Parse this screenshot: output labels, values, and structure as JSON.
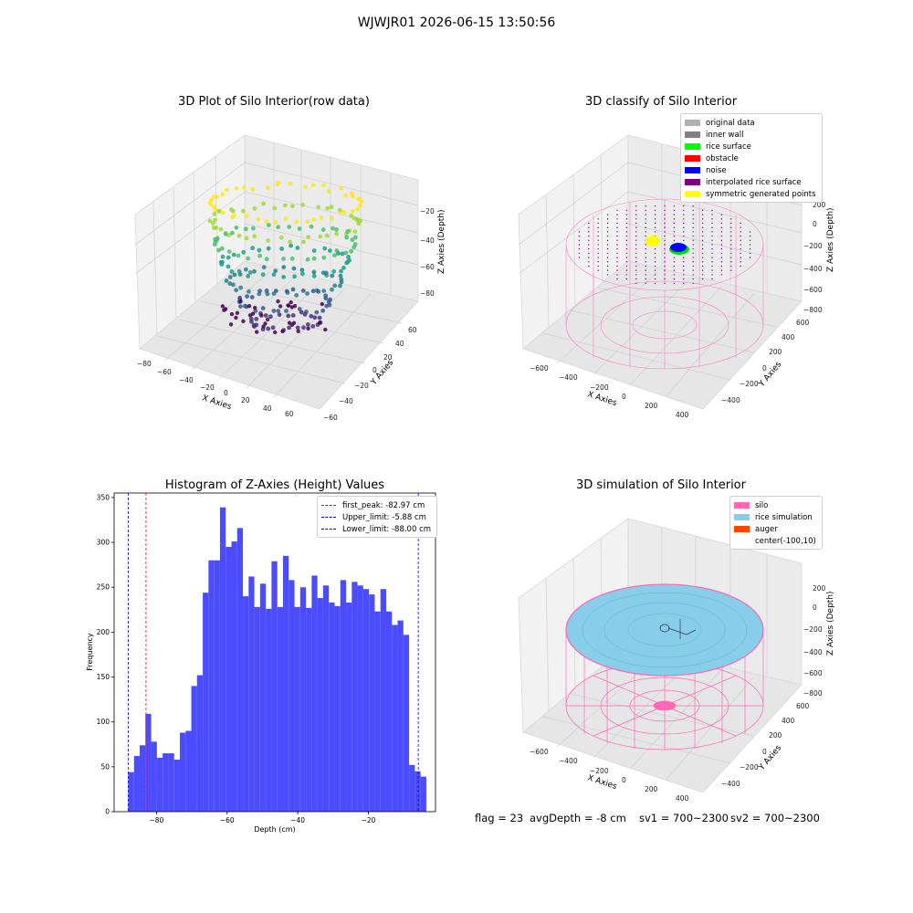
{
  "suptitle": "WJWJR01 2026-06-15 13:50:56",
  "status": {
    "flag": "flag = 23",
    "avg_depth": "avgDepth = -8 cm",
    "sv1": "sv1 = 700~2300",
    "sv2": "sv2 = 700~2300"
  },
  "colors": {
    "histogram_bar": "#4c4cff",
    "first_peak": "#ff0000",
    "limits": "#0000cc",
    "silo": "#ff69b4",
    "rice": "#87ceeb",
    "auger": "#ff4500"
  },
  "chart_data": [
    {
      "type": "scatter",
      "title": "3D Plot of Silo Interior(row data)",
      "xlabel": "X Axies",
      "ylabel": "Y Axies",
      "zlabel": "Z Axies (Depth)",
      "x_ticks": [
        "−80",
        "−60",
        "−40",
        "−20",
        "0",
        "20",
        "40",
        "60"
      ],
      "y_ticks": [
        "−60",
        "−40",
        "−20",
        "0",
        "20",
        "40",
        "60"
      ],
      "z_ticks": [
        "−80",
        "−60",
        "−40",
        "−20"
      ],
      "colormap": "viridis"
    },
    {
      "type": "scatter",
      "title": "3D classify of Silo Interior",
      "xlabel": "X Axies",
      "ylabel": "Y Axies",
      "zlabel": "Z Axies (Depth)",
      "x_ticks": [
        "−600",
        "−400",
        "−200",
        "0",
        "200",
        "400"
      ],
      "y_ticks": [
        "−400",
        "−200",
        "0",
        "200",
        "400",
        "600"
      ],
      "z_ticks": [
        "−800",
        "−600",
        "−400",
        "−200",
        "0",
        "200"
      ],
      "legend_position": "top-right",
      "legend": [
        {
          "label": "original data",
          "color": "#b0b0b0"
        },
        {
          "label": "inner wall",
          "color": "#808080"
        },
        {
          "label": "rice surface",
          "color": "#00ff00"
        },
        {
          "label": "obstacle",
          "color": "#ff0000"
        },
        {
          "label": "noise",
          "color": "#0000ff"
        },
        {
          "label": "interpolated rice surface",
          "color": "#800080"
        },
        {
          "label": "symmetric generated points",
          "color": "#ffff00"
        }
      ]
    },
    {
      "type": "bar",
      "title": "Histogram of Z-Axies (Height) Values",
      "xlabel": "Depth (cm)",
      "ylabel": "Frequency",
      "xlim": [
        -92,
        -1
      ],
      "ylim": [
        0,
        355
      ],
      "x_ticks": [
        -80,
        -60,
        -40,
        -20
      ],
      "y_ticks": [
        0,
        50,
        100,
        150,
        200,
        250,
        300,
        350
      ],
      "bin_start": -88.0,
      "bin_width": 1.623,
      "values": [
        44,
        62,
        74,
        109,
        78,
        60,
        65,
        65,
        58,
        88,
        90,
        140,
        152,
        244,
        280,
        280,
        339,
        295,
        301,
        316,
        240,
        262,
        228,
        254,
        226,
        279,
        228,
        285,
        258,
        228,
        250,
        227,
        263,
        238,
        252,
        233,
        229,
        258,
        233,
        256,
        252,
        248,
        242,
        223,
        248,
        223,
        208,
        213,
        197,
        52,
        45,
        39
      ],
      "legend_position": "top-right",
      "vlines": [
        {
          "label": "first_peak: -82.97 cm",
          "x": -82.97,
          "color": "#ff0000"
        },
        {
          "label": "Upper_limit: -5.88 cm",
          "x": -5.88,
          "color": "#0000cc"
        },
        {
          "label": "Lower_limit: -88.00 cm",
          "x": -88.0,
          "color": "#0000cc"
        }
      ]
    },
    {
      "type": "scatter",
      "title": "3D simulation of Silo Interior",
      "xlabel": "X Axies",
      "ylabel": "Y Axies",
      "zlabel": "Z Axies (Depth)",
      "x_ticks": [
        "−600",
        "−400",
        "−200",
        "0",
        "200",
        "400"
      ],
      "y_ticks": [
        "−400",
        "−200",
        "0",
        "200",
        "400",
        "600"
      ],
      "z_ticks": [
        "−800",
        "−600",
        "−400",
        "−200",
        "0",
        "200"
      ],
      "legend_position": "top-right",
      "legend": [
        {
          "label": "silo",
          "color": "#ff69b4"
        },
        {
          "label": "rice simulation",
          "color": "#87ceeb"
        },
        {
          "label": "auger",
          "color": "#ff4500"
        },
        {
          "label": "center(-100,10)",
          "color": ""
        }
      ]
    }
  ]
}
